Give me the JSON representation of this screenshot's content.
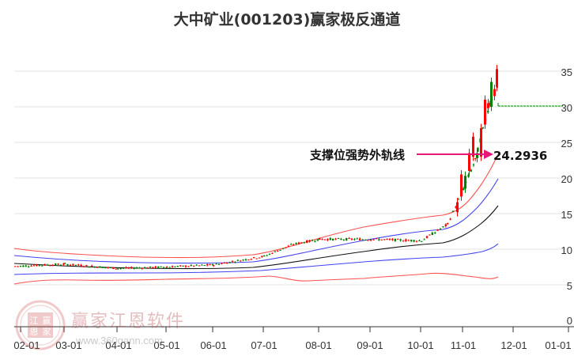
{
  "header": {
    "title": "大中矿业(001203)赢家极反通道"
  },
  "annotation": {
    "label": "支撑位强势外轨线",
    "value": "24.2936",
    "arrow_color": "#e8187a"
  },
  "watermark": {
    "text": "赢家江恩软件",
    "url": "www.360gann.com",
    "seal": [
      "江",
      "赢",
      "恩",
      "家"
    ]
  },
  "colors": {
    "up": "#ff0000",
    "down": "#008000",
    "outer_band": "#ff4444",
    "inner_band": "#3333ff",
    "mid_line": "#000000",
    "last_price_line": "#008000",
    "grid": "#e0e0e0"
  },
  "chart_data": {
    "type": "candlestick",
    "title": "大中矿业(001203)赢家极反通道",
    "xlabel": "",
    "ylabel": "",
    "ylim": [
      0,
      37
    ],
    "grid": true,
    "legend": null,
    "y_ticks": [
      "0",
      "5",
      "10",
      "15",
      "20",
      "25",
      "30",
      "35"
    ],
    "x_ticks": [
      "02-01",
      "03-01",
      "04-01",
      "05-01",
      "06-01",
      "07-01",
      "08-01",
      "09-01",
      "10-01",
      "11-01",
      "12-01",
      "01-01"
    ],
    "annotations": [
      {
        "text": "支撑位强势外轨线",
        "value": 24.2936,
        "type": "arrow"
      }
    ],
    "last_price": 30.8,
    "series": [
      {
        "name": "upper-outer (red)",
        "values": [
          10.2,
          9.8,
          9.5,
          9.3,
          9.3,
          9.3,
          9.6,
          10.3,
          11.0,
          12.5,
          13.8,
          14.4,
          15.0,
          16.2,
          24.3
        ]
      },
      {
        "name": "upper-inner (blue)",
        "values": [
          8.8,
          8.4,
          8.1,
          8.0,
          8.0,
          8.0,
          8.3,
          9.3,
          10.5,
          11.8,
          12.8,
          13.3,
          14.0,
          15.0,
          20.8
        ]
      },
      {
        "name": "middle (black)",
        "values": [
          7.6,
          7.6,
          7.5,
          7.4,
          7.4,
          7.3,
          7.4,
          7.9,
          8.7,
          9.8,
          10.8,
          11.3,
          11.7,
          12.6,
          16.8
        ]
      },
      {
        "name": "lower-inner (blue)",
        "values": [
          6.3,
          6.5,
          6.7,
          6.8,
          6.8,
          6.7,
          6.8,
          7.0,
          7.5,
          8.3,
          8.9,
          9.3,
          9.6,
          10.0,
          11.5
        ]
      },
      {
        "name": "lower-outer (red)",
        "values": [
          4.5,
          5.2,
          5.4,
          5.5,
          5.6,
          5.6,
          5.7,
          5.8,
          6.0,
          5.7,
          6.0,
          6.4,
          6.2,
          5.7,
          5.9
        ]
      }
    ],
    "price_path": {
      "x_months": [
        "02-01",
        "03-01",
        "04-01",
        "05-01",
        "06-01",
        "07-01",
        "07-15",
        "08-01",
        "09-01",
        "10-01",
        "10-20",
        "11-01",
        "11-10",
        "11-20",
        "11-28"
      ],
      "close": [
        7.6,
        7.9,
        7.3,
        7.5,
        7.8,
        9.0,
        10.7,
        11.4,
        11.4,
        11.2,
        13.5,
        18.5,
        22.5,
        30.5,
        33.0
      ]
    }
  }
}
